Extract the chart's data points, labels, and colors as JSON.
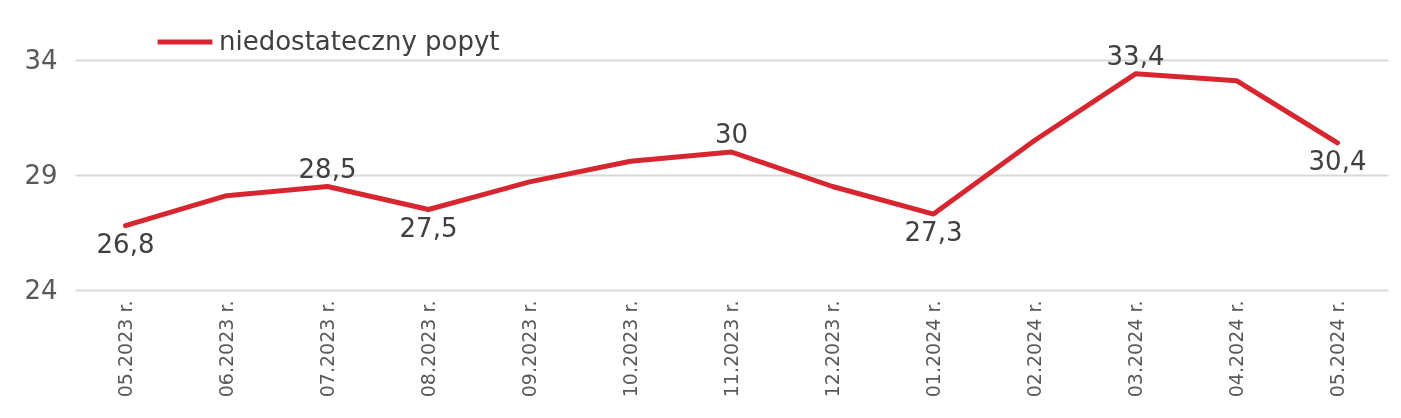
{
  "chart_data": {
    "type": "line",
    "categories": [
      "05.2023 r.",
      "06.2023 r.",
      "07.2023 r.",
      "08.2023 r.",
      "09.2023 r.",
      "10.2023 r.",
      "11.2023 r.",
      "12.2023 r.",
      "01.2024 r.",
      "02.2024 r.",
      "03.2024 r.",
      "04.2024 r.",
      "05.2024 r."
    ],
    "series": [
      {
        "name": "niedostateczny popyt",
        "color": "#d7262f",
        "values": [
          26.8,
          28.1,
          28.5,
          27.5,
          28.7,
          29.6,
          30,
          28.5,
          27.3,
          30.5,
          33.4,
          33.1,
          30.4
        ],
        "value_labels": [
          "26,8",
          null,
          "28,5",
          "27,5",
          null,
          null,
          "30",
          null,
          "27,3",
          null,
          "33,4",
          null,
          "30,4"
        ]
      }
    ],
    "ylim": [
      24,
      34
    ],
    "yticks": [
      24,
      29,
      34
    ],
    "grid": "y",
    "legend": "top left"
  }
}
